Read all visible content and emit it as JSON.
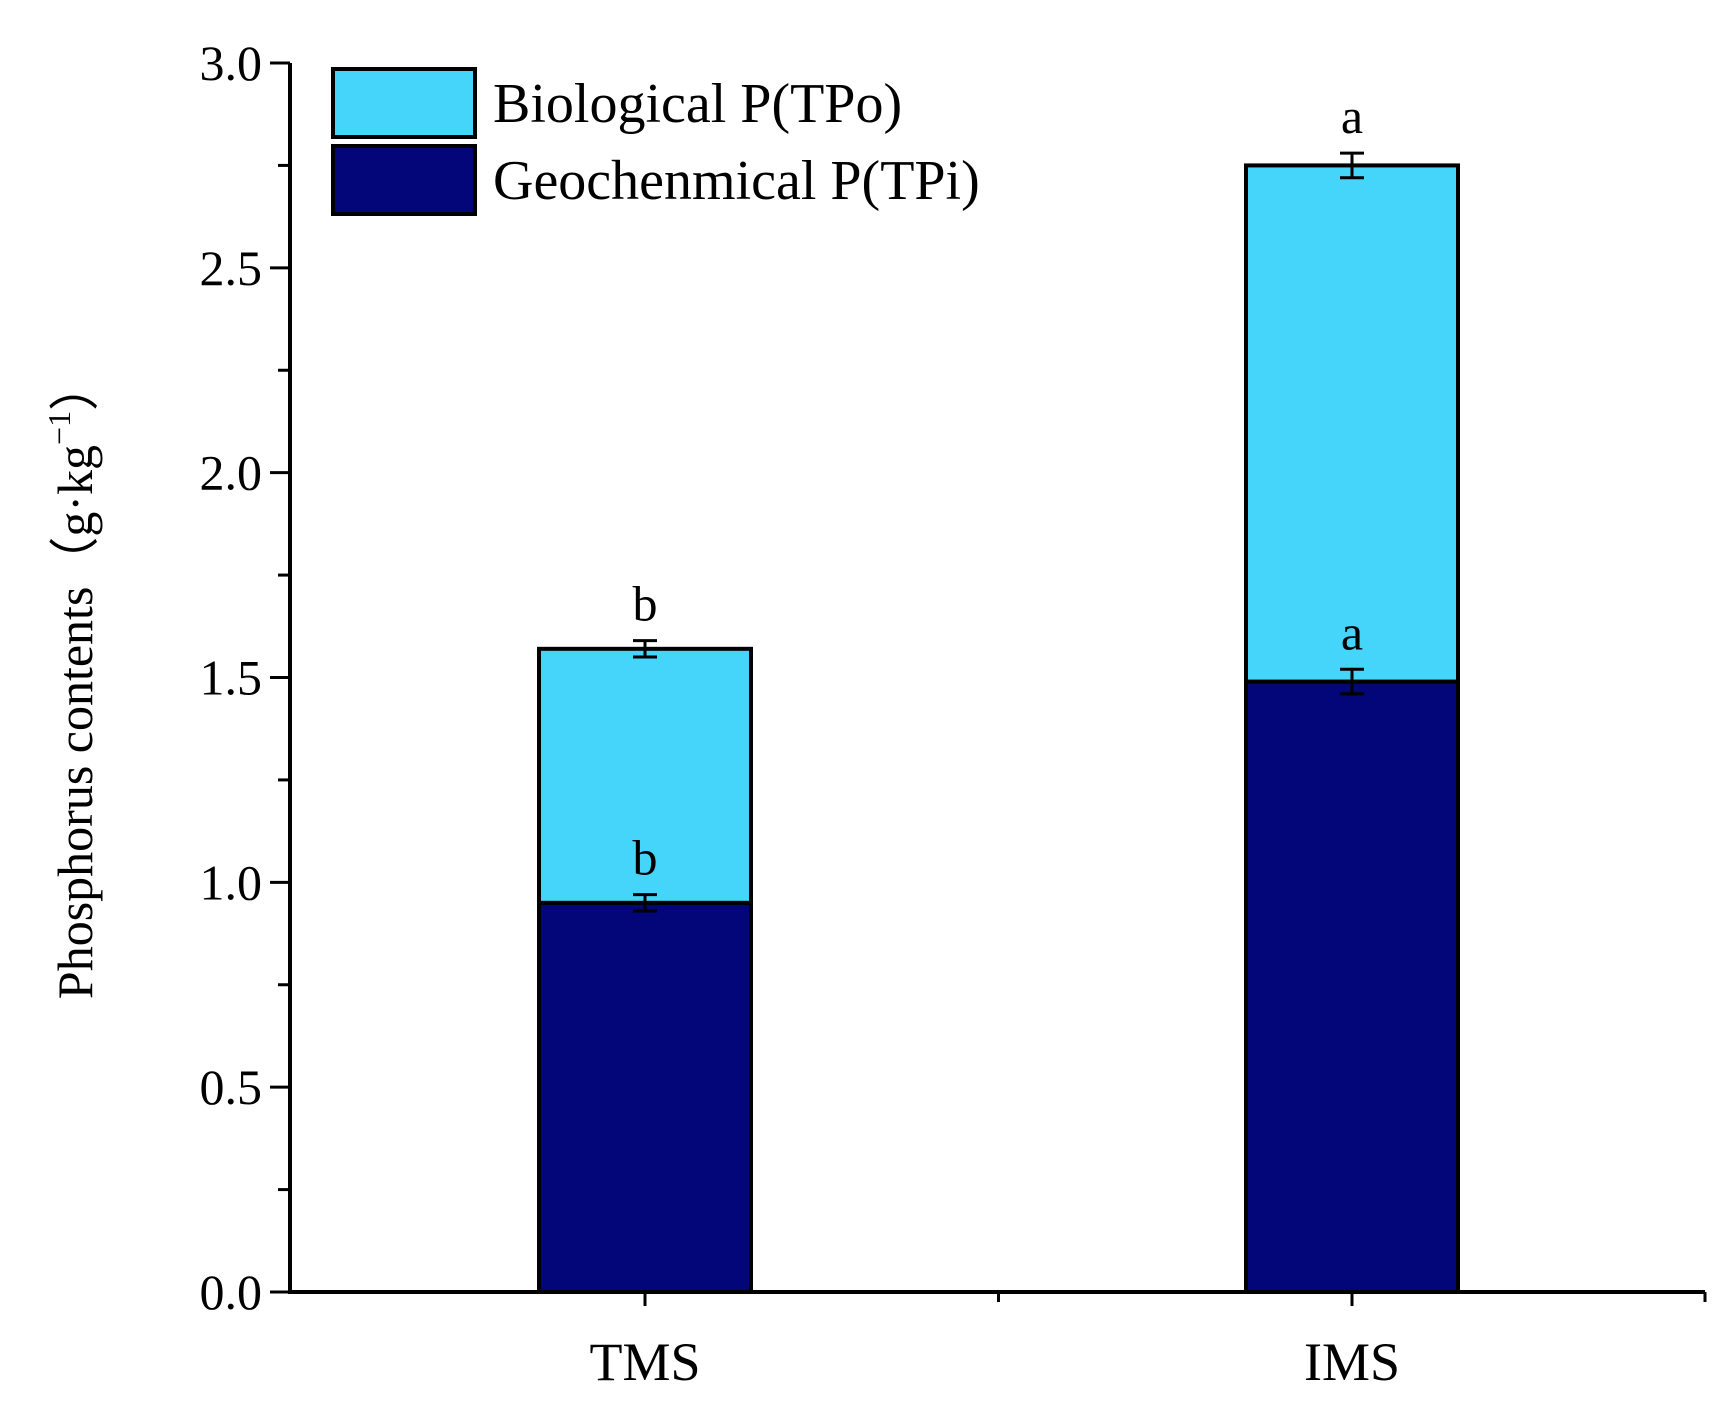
{
  "chart_data": {
    "type": "bar",
    "stacked": true,
    "title": "",
    "xlabel": "",
    "ylabel": "Phosphorus contents（g·kg",
    "ylabel_superscript": "−1",
    "ylabel_close": "）",
    "ylim": [
      0,
      3.0
    ],
    "ytick_step": 0.5,
    "yminor_step": 0.25,
    "yticks": [
      "0.0",
      "0.5",
      "1.0",
      "1.5",
      "2.0",
      "2.5",
      "3.0"
    ],
    "categories": [
      "TMS",
      "IMS"
    ],
    "legend_position": "top-left",
    "series": [
      {
        "name": "Geochenmical P(TPi)",
        "color": "#020678",
        "values": [
          0.95,
          1.49
        ],
        "errors": [
          0.02,
          0.03
        ],
        "significance": [
          "b",
          "a"
        ]
      },
      {
        "name": "Biological P(TPo)",
        "color": "#45D4FA",
        "values": [
          0.62,
          1.26
        ],
        "errors": [
          0.02,
          0.03
        ],
        "significance": [
          "b",
          "a"
        ]
      }
    ],
    "legend_order": [
      1,
      0
    ]
  }
}
